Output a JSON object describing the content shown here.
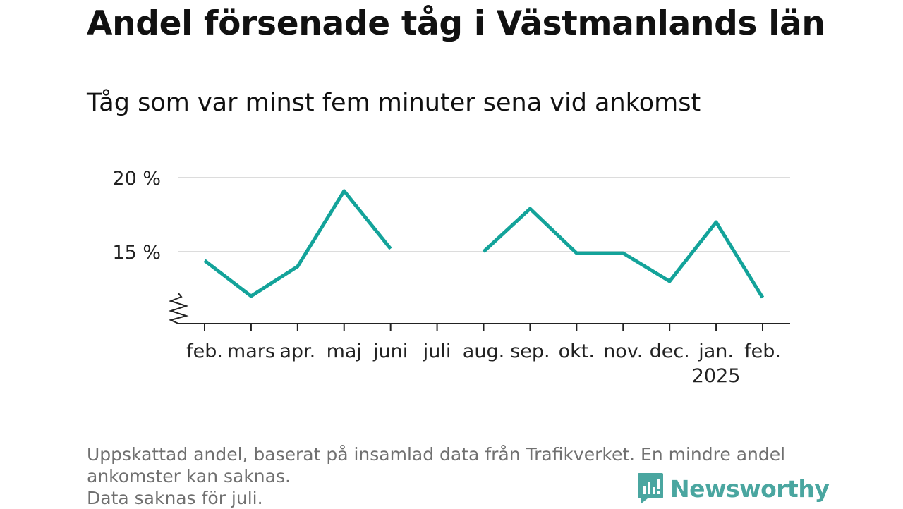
{
  "title": "Andel försenade tåg i Västmanlands län",
  "subtitle": "Tåg som var minst fem minuter sena vid ankomst",
  "footnote": {
    "line1": "Uppskattad andel, baserat på insamlad data från Trafikverket. En mindre andel",
    "line2": "ankomster kan saknas.",
    "line3": "Data saknas för juli."
  },
  "brand": {
    "name": "Newsworthy",
    "color": "#4aa6a0",
    "icon": "newsworthy-logo-icon"
  },
  "chart_data": {
    "type": "line",
    "categories": [
      "feb.",
      "mars",
      "apr.",
      "maj",
      "juni",
      "juli",
      "aug.",
      "sep.",
      "okt.",
      "nov.",
      "dec.",
      "jan.",
      "feb."
    ],
    "category_sublabels": [
      "",
      "",
      "",
      "",
      "",
      "",
      "",
      "",
      "",
      "",
      "",
      "2025",
      ""
    ],
    "series": [
      {
        "values": [
          14.4,
          12.0,
          14.0,
          19.1,
          15.2,
          null,
          15.0,
          17.9,
          14.9,
          14.9,
          13.0,
          17.0,
          11.9
        ],
        "color": "#13a39a"
      }
    ],
    "yticks": [
      15,
      20
    ],
    "ytick_labels": [
      "15 %",
      "20 %"
    ],
    "ylim": [
      10,
      20
    ],
    "y_axis_break": true,
    "grid": "horizontal",
    "legend": "none"
  }
}
